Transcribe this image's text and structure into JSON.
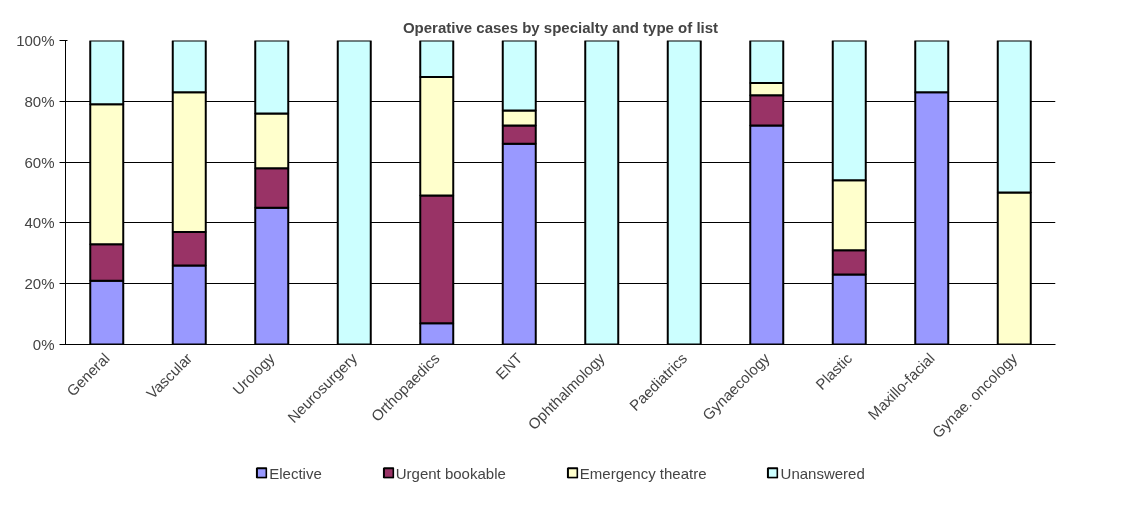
{
  "chart_data": {
    "type": "bar",
    "title": "Operative cases by specialty and type of list",
    "stacked": true,
    "categories": [
      "General",
      "Vascular",
      "Urology",
      "Neurosurgery",
      "Orthopaedics",
      "ENT",
      "Ophthalmology",
      "Paediatrics",
      "Gynaecology",
      "Plastic",
      "Maxillo-facial",
      "Gynae. oncology"
    ],
    "series": [
      {
        "name": "Elective",
        "color": "#9999ff",
        "values": [
          21,
          26,
          45,
          0,
          7,
          66,
          0,
          0,
          72,
          23,
          83,
          0
        ]
      },
      {
        "name": "Urgent bookable",
        "color": "#993366",
        "values": [
          12,
          11,
          13,
          0,
          42,
          6,
          0,
          0,
          10,
          8,
          0,
          0
        ]
      },
      {
        "name": "Emergency theatre",
        "color": "#ffffcc",
        "values": [
          46,
          46,
          18,
          0,
          39,
          5,
          0,
          0,
          4,
          23,
          0,
          50
        ]
      },
      {
        "name": "Unanswered",
        "color": "#ccffff",
        "values": [
          21,
          17,
          24,
          100,
          12,
          23,
          100,
          100,
          14,
          46,
          17,
          50
        ]
      }
    ],
    "ylim": [
      0,
      100
    ],
    "yticks": [
      {
        "value": 0,
        "label": "0%"
      },
      {
        "value": 20,
        "label": "20%"
      },
      {
        "value": 40,
        "label": "40%"
      },
      {
        "value": 60,
        "label": "60%"
      },
      {
        "value": 80,
        "label": "80%"
      },
      {
        "value": 100,
        "label": "100%"
      }
    ],
    "grid": "y",
    "legend": "bottom"
  }
}
